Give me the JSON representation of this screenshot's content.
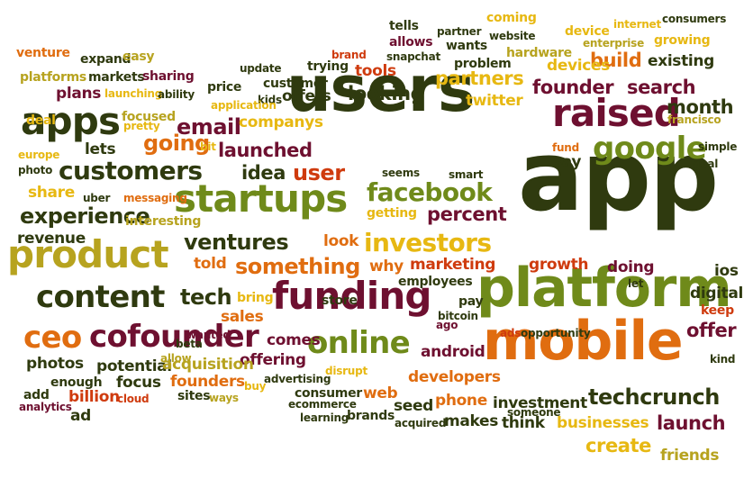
{
  "words": [
    {
      "text": "app",
      "size": 12,
      "color": 1
    },
    {
      "text": "users",
      "size": 11,
      "color": 1
    },
    {
      "text": "mobile",
      "size": 10,
      "color": 3
    },
    {
      "text": "platform",
      "size": 10,
      "color": 2
    },
    {
      "text": "funding",
      "size": 9,
      "color": 5
    },
    {
      "text": "product",
      "size": 9,
      "color": 7
    },
    {
      "text": "startups",
      "size": 9,
      "color": 2
    },
    {
      "text": "apps",
      "size": 9,
      "color": 1
    },
    {
      "text": "raised",
      "size": 9,
      "color": 5
    },
    {
      "text": "content",
      "size": 8,
      "color": 1
    },
    {
      "text": "ceo",
      "size": 8,
      "color": 3
    },
    {
      "text": "cofounder",
      "size": 8,
      "color": 5
    },
    {
      "text": "google",
      "size": 8,
      "color": 2
    },
    {
      "text": "online",
      "size": 8,
      "color": 2
    },
    {
      "text": "customers",
      "size": 7,
      "color": 1
    },
    {
      "text": "investors",
      "size": 7,
      "color": 4
    },
    {
      "text": "facebook",
      "size": 7,
      "color": 2
    },
    {
      "text": "techcrunch",
      "size": 6,
      "color": 1
    },
    {
      "text": "something",
      "size": 6,
      "color": 3
    },
    {
      "text": "ventures",
      "size": 6,
      "color": 1
    },
    {
      "text": "experience",
      "size": 6,
      "color": 1
    },
    {
      "text": "tech",
      "size": 6,
      "color": 1
    },
    {
      "text": "user",
      "size": 6,
      "color": 6
    },
    {
      "text": "going",
      "size": 6,
      "color": 3
    },
    {
      "text": "email",
      "size": 6,
      "color": 5
    },
    {
      "text": "launched",
      "size": 5,
      "color": 5
    },
    {
      "text": "founder",
      "size": 5,
      "color": 5
    },
    {
      "text": "looking",
      "size": 5,
      "color": 1
    },
    {
      "text": "build",
      "size": 5,
      "color": 3
    },
    {
      "text": "search",
      "size": 5,
      "color": 5
    },
    {
      "text": "month",
      "size": 5,
      "color": 1
    },
    {
      "text": "partners",
      "size": 5,
      "color": 4
    },
    {
      "text": "launch",
      "size": 5,
      "color": 5
    },
    {
      "text": "create",
      "size": 5,
      "color": 4
    },
    {
      "text": "offer",
      "size": 5,
      "color": 5
    },
    {
      "text": "percent",
      "size": 5,
      "color": 5
    },
    {
      "text": "idea",
      "size": 5,
      "color": 1
    },
    {
      "text": "tools",
      "size": 4,
      "color": 6
    },
    {
      "text": "plans",
      "size": 4,
      "color": 5
    },
    {
      "text": "offers",
      "size": 4,
      "color": 1
    },
    {
      "text": "twitter",
      "size": 4,
      "color": 4
    },
    {
      "text": "companys",
      "size": 4,
      "color": 4
    },
    {
      "text": "existing",
      "size": 4,
      "color": 1
    },
    {
      "text": "devices",
      "size": 4,
      "color": 4
    },
    {
      "text": "growth",
      "size": 4,
      "color": 6
    },
    {
      "text": "marketing",
      "size": 4,
      "color": 6
    },
    {
      "text": "android",
      "size": 4,
      "color": 5
    },
    {
      "text": "developers",
      "size": 4,
      "color": 3
    },
    {
      "text": "offering",
      "size": 4,
      "color": 5
    },
    {
      "text": "comes",
      "size": 4,
      "color": 5
    },
    {
      "text": "sales",
      "size": 4,
      "color": 3
    },
    {
      "text": "told",
      "size": 4,
      "color": 3
    },
    {
      "text": "share",
      "size": 4,
      "color": 4
    },
    {
      "text": "lets",
      "size": 4,
      "color": 1
    },
    {
      "text": "revenue",
      "size": 4,
      "color": 1
    },
    {
      "text": "photos",
      "size": 4,
      "color": 1
    },
    {
      "text": "potential",
      "size": 4,
      "color": 1
    },
    {
      "text": "focus",
      "size": 4,
      "color": 1
    },
    {
      "text": "founders",
      "size": 4,
      "color": 3
    },
    {
      "text": "acquisition",
      "size": 4,
      "color": 7
    },
    {
      "text": "billion",
      "size": 4,
      "color": 6
    },
    {
      "text": "phone",
      "size": 4,
      "color": 3
    },
    {
      "text": "web",
      "size": 4,
      "color": 3
    },
    {
      "text": "seed",
      "size": 4,
      "color": 1
    },
    {
      "text": "makes",
      "size": 4,
      "color": 1
    },
    {
      "text": "think",
      "size": 4,
      "color": 1
    },
    {
      "text": "investment",
      "size": 4,
      "color": 1
    },
    {
      "text": "businesses",
      "size": 4,
      "color": 4
    },
    {
      "text": "friends",
      "size": 4,
      "color": 7
    },
    {
      "text": "doing",
      "size": 4,
      "color": 5
    },
    {
      "text": "ios",
      "size": 4,
      "color": 1
    },
    {
      "text": "digital",
      "size": 4,
      "color": 1
    },
    {
      "text": "say",
      "size": 4,
      "color": 1
    },
    {
      "text": "why",
      "size": 4,
      "color": 3
    },
    {
      "text": "look",
      "size": 4,
      "color": 3
    },
    {
      "text": "ad",
      "size": 4,
      "color": 1
    },
    {
      "text": "add",
      "size": 3,
      "color": 1
    },
    {
      "text": "enough",
      "size": 3,
      "color": 1
    },
    {
      "text": "allows",
      "size": 3,
      "color": 5
    },
    {
      "text": "wants",
      "size": 3,
      "color": 1
    },
    {
      "text": "problem",
      "size": 3,
      "color": 1
    },
    {
      "text": "hardware",
      "size": 3,
      "color": 7
    },
    {
      "text": "device",
      "size": 3,
      "color": 4
    },
    {
      "text": "growing",
      "size": 3,
      "color": 4
    },
    {
      "text": "customer",
      "size": 3,
      "color": 1
    },
    {
      "text": "price",
      "size": 3,
      "color": 1
    },
    {
      "text": "trying",
      "size": 3,
      "color": 1
    },
    {
      "text": "focused",
      "size": 3,
      "color": 7
    },
    {
      "text": "deal",
      "size": 3,
      "color": 4
    },
    {
      "text": "venture",
      "size": 3,
      "color": 3
    },
    {
      "text": "expand",
      "size": 3,
      "color": 1
    },
    {
      "text": "easy",
      "size": 3,
      "color": 7
    },
    {
      "text": "markets",
      "size": 3,
      "color": 1
    },
    {
      "text": "sharing",
      "size": 3,
      "color": 5
    },
    {
      "text": "platforms",
      "size": 3,
      "color": 7
    },
    {
      "text": "store",
      "size": 3,
      "color": 1
    },
    {
      "text": "pay",
      "size": 3,
      "color": 1
    },
    {
      "text": "bring",
      "size": 3,
      "color": 4
    },
    {
      "text": "keep",
      "size": 3,
      "color": 6
    },
    {
      "text": "employees",
      "size": 3,
      "color": 1
    },
    {
      "text": "getting",
      "size": 3,
      "color": 4
    },
    {
      "text": "interesting",
      "size": 3,
      "color": 7
    },
    {
      "text": "consumer",
      "size": 3,
      "color": 1
    },
    {
      "text": "brands",
      "size": 3,
      "color": 1
    },
    {
      "text": "sites",
      "size": 3,
      "color": 1
    },
    {
      "text": "tells",
      "size": 3,
      "color": 1
    },
    {
      "text": "coming",
      "size": 3,
      "color": 4
    },
    {
      "text": "partner",
      "size": 2,
      "color": 1
    },
    {
      "text": "website",
      "size": 2,
      "color": 1
    },
    {
      "text": "internet",
      "size": 2,
      "color": 4
    },
    {
      "text": "consumers",
      "size": 2,
      "color": 1
    },
    {
      "text": "enterprise",
      "size": 2,
      "color": 7
    },
    {
      "text": "snapchat",
      "size": 2,
      "color": 1
    },
    {
      "text": "brand",
      "size": 2,
      "color": 6
    },
    {
      "text": "update",
      "size": 2,
      "color": 1
    },
    {
      "text": "launching",
      "size": 2,
      "color": 4
    },
    {
      "text": "ability",
      "size": 2,
      "color": 1
    },
    {
      "text": "kids",
      "size": 2,
      "color": 1
    },
    {
      "text": "application",
      "size": 2,
      "color": 4
    },
    {
      "text": "francisco",
      "size": 2,
      "color": 7
    },
    {
      "text": "simple",
      "size": 2,
      "color": 1
    },
    {
      "text": "goal",
      "size": 2,
      "color": 1
    },
    {
      "text": "fund",
      "size": 2,
      "color": 3
    },
    {
      "text": "smart",
      "size": 2,
      "color": 1
    },
    {
      "text": "seems",
      "size": 2,
      "color": 1
    },
    {
      "text": "uber",
      "size": 2,
      "color": 1
    },
    {
      "text": "messaging",
      "size": 2,
      "color": 3
    },
    {
      "text": "europe",
      "size": 2,
      "color": 4
    },
    {
      "text": "photo",
      "size": 2,
      "color": 1
    },
    {
      "text": "pretty",
      "size": 2,
      "color": 4
    },
    {
      "text": "bit",
      "size": 2,
      "color": 4
    },
    {
      "text": "ago",
      "size": 2,
      "color": 5
    },
    {
      "text": "let",
      "size": 2,
      "color": 1
    },
    {
      "text": "wanted",
      "size": 2,
      "color": 5
    },
    {
      "text": "beta",
      "size": 2,
      "color": 1
    },
    {
      "text": "allow",
      "size": 2,
      "color": 7
    },
    {
      "text": "bitcoin",
      "size": 2,
      "color": 1
    },
    {
      "text": "ads",
      "size": 2,
      "color": 6
    },
    {
      "text": "opportunity",
      "size": 2,
      "color": 1
    },
    {
      "text": "kind",
      "size": 2,
      "color": 1
    },
    {
      "text": "analytics",
      "size": 2,
      "color": 5
    },
    {
      "text": "cloud",
      "size": 2,
      "color": 6
    },
    {
      "text": "ways",
      "size": 2,
      "color": 7
    },
    {
      "text": "buy",
      "size": 2,
      "color": 4
    },
    {
      "text": "advertising",
      "size": 2,
      "color": 1
    },
    {
      "text": "disrupt",
      "size": 2,
      "color": 4
    },
    {
      "text": "ecommerce",
      "size": 2,
      "color": 1
    },
    {
      "text": "learning",
      "size": 2,
      "color": 1
    },
    {
      "text": "acquired",
      "size": 2,
      "color": 1
    },
    {
      "text": "someone",
      "size": 2,
      "color": 1
    }
  ]
}
